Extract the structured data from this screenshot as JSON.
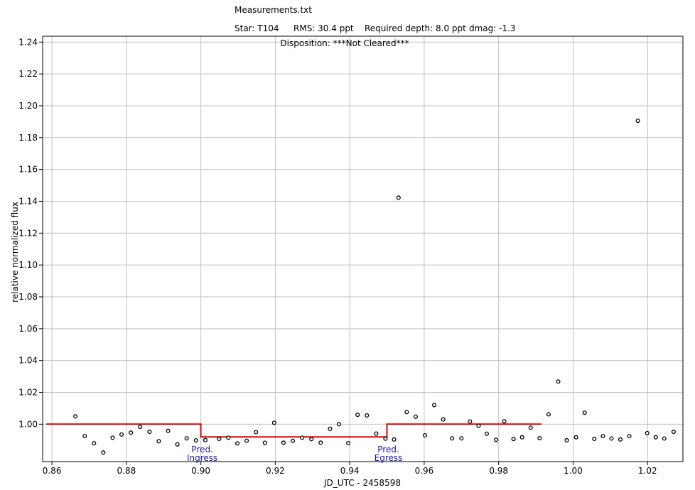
{
  "chart_data": {
    "type": "scatter",
    "title": "Measurements.txt",
    "subtitle_items": [
      "Star: T104",
      "RMS: 30.4 ppt",
      "Required depth: 8.0 ppt",
      "dmag: -1.3"
    ],
    "disposition": "Disposition: ***Not Cleared***",
    "xlabel": "JD_UTC - 2458598",
    "ylabel": "relative normalized flux",
    "xlim": [
      0.8575,
      1.0295
    ],
    "ylim": [
      0.9765,
      1.2437
    ],
    "grid": true,
    "x_ticks": [
      0.86,
      0.88,
      0.9,
      0.92,
      0.94,
      0.96,
      0.98,
      1.0,
      1.02
    ],
    "x_tick_labels": [
      "0.86",
      "0.88",
      "0.90",
      "0.92",
      "0.94",
      "0.96",
      "0.98",
      "1.00",
      "1.02"
    ],
    "y_ticks": [
      1.0,
      1.02,
      1.04,
      1.06,
      1.08,
      1.1,
      1.12,
      1.14,
      1.16,
      1.18,
      1.2,
      1.22,
      1.24
    ],
    "y_tick_labels": [
      "1.00",
      "1.02",
      "1.04",
      "1.06",
      "1.08",
      "1.10",
      "1.12",
      "1.14",
      "1.16",
      "1.18",
      "1.20",
      "1.22",
      "1.24"
    ],
    "colors": {
      "points": "#000000",
      "model": "#e00000",
      "grid": "#c0c0c0",
      "annotation": "#1a1aa8"
    },
    "points": [
      [
        0.8663,
        1.0049
      ],
      [
        0.8688,
        0.9925
      ],
      [
        0.8713,
        0.988
      ],
      [
        0.8738,
        0.9822
      ],
      [
        0.8763,
        0.9915
      ],
      [
        0.8787,
        0.9935
      ],
      [
        0.8812,
        0.9947
      ],
      [
        0.8837,
        0.9983
      ],
      [
        0.8862,
        0.9952
      ],
      [
        0.8887,
        0.9893
      ],
      [
        0.8912,
        0.9958
      ],
      [
        0.8937,
        0.9873
      ],
      [
        0.8962,
        0.9911
      ],
      [
        0.8987,
        0.9898
      ],
      [
        0.9012,
        0.99
      ],
      [
        0.9049,
        0.9908
      ],
      [
        0.9074,
        0.9915
      ],
      [
        0.9098,
        0.9879
      ],
      [
        0.9123,
        0.9896
      ],
      [
        0.9148,
        0.995
      ],
      [
        0.9172,
        0.9883
      ],
      [
        0.9197,
        1.0009
      ],
      [
        0.9222,
        0.9884
      ],
      [
        0.9247,
        0.9895
      ],
      [
        0.9272,
        0.9915
      ],
      [
        0.9297,
        0.9906
      ],
      [
        0.9322,
        0.9884
      ],
      [
        0.9347,
        0.9971
      ],
      [
        0.9371,
        1.0
      ],
      [
        0.9396,
        0.9881
      ],
      [
        0.9421,
        1.0059
      ],
      [
        0.9446,
        1.0055
      ],
      [
        0.9471,
        0.9941
      ],
      [
        0.9496,
        0.9909
      ],
      [
        0.9519,
        0.9904
      ],
      [
        0.9531,
        1.1423
      ],
      [
        0.9553,
        1.0076
      ],
      [
        0.9577,
        1.0047
      ],
      [
        0.9602,
        0.993
      ],
      [
        0.9627,
        1.012
      ],
      [
        0.9651,
        1.003
      ],
      [
        0.9675,
        0.9911
      ],
      [
        0.97,
        0.9911
      ],
      [
        0.9723,
        1.0017
      ],
      [
        0.9746,
        0.999
      ],
      [
        0.9768,
        0.994
      ],
      [
        0.9793,
        0.9902
      ],
      [
        0.9815,
        1.0018
      ],
      [
        0.984,
        0.9907
      ],
      [
        0.9863,
        0.9918
      ],
      [
        0.9886,
        0.9978
      ],
      [
        0.991,
        0.9912
      ],
      [
        0.9934,
        1.0062
      ],
      [
        0.996,
        1.0268
      ],
      [
        0.9983,
        0.9899
      ],
      [
        1.0008,
        0.9918
      ],
      [
        1.0031,
        1.0072
      ],
      [
        1.0057,
        0.9908
      ],
      [
        1.008,
        0.9925
      ],
      [
        1.0103,
        0.991
      ],
      [
        1.0127,
        0.9904
      ],
      [
        1.0151,
        0.9925
      ],
      [
        1.0174,
        1.1906
      ],
      [
        1.0199,
        0.9944
      ],
      [
        1.0222,
        0.9918
      ],
      [
        1.0245,
        0.991
      ],
      [
        1.027,
        0.9952
      ]
    ],
    "model_line": [
      [
        0.8585,
        1.0
      ],
      [
        0.9,
        1.0
      ],
      [
        0.9,
        0.992
      ],
      [
        0.95,
        0.992
      ],
      [
        0.95,
        1.0
      ],
      [
        0.9915,
        1.0
      ]
    ],
    "annotations": [
      {
        "x": 0.9,
        "lines": [
          "Pred.",
          "Ingress"
        ]
      },
      {
        "x": 0.95,
        "lines": [
          "Pred.",
          "Egress"
        ]
      }
    ]
  }
}
